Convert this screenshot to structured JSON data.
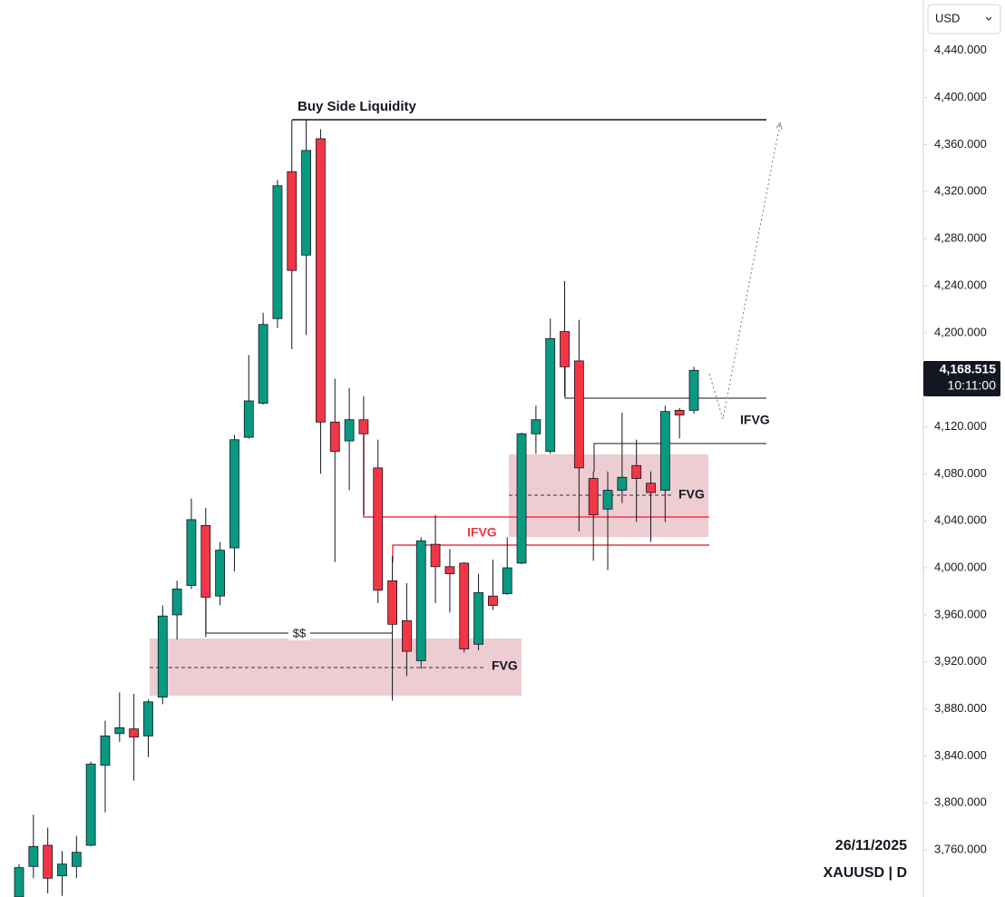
{
  "chart_data": {
    "type": "candlestick",
    "symbol": "XAUUSD | D",
    "date": "26/11/2025",
    "currency": "USD",
    "last_price": {
      "value": 4168.515,
      "label": "4,168.515"
    },
    "countdown": "10:11:00",
    "annotations": {
      "bsl": "Buy Side Liquidity",
      "ifvg_upper": "IFVG",
      "ifvg_lower": "IFVG",
      "fvg_upper": "FVG",
      "fvg_lower": "FVG",
      "ss": "$$"
    },
    "up_color": "#089981",
    "down_color": "#f23645",
    "ylim": [
      3720,
      4483
    ],
    "yticks": [
      {
        "value": 3760,
        "label": "3,760.000"
      },
      {
        "value": 3800,
        "label": "3,800.000"
      },
      {
        "value": 3840,
        "label": "3,840.000"
      },
      {
        "value": 3880,
        "label": "3,880.000"
      },
      {
        "value": 3920,
        "label": "3,920.000"
      },
      {
        "value": 3960,
        "label": "3,960.000"
      },
      {
        "value": 4000,
        "label": "4,000.000"
      },
      {
        "value": 4040,
        "label": "4,040.000"
      },
      {
        "value": 4080,
        "label": "4,080.000"
      },
      {
        "value": 4120,
        "label": "4,120.000"
      },
      {
        "value": 4160,
        "label": "4,160.000"
      },
      {
        "value": 4200,
        "label": "4,200.000"
      },
      {
        "value": 4240,
        "label": "4,240.000"
      },
      {
        "value": 4280,
        "label": "4,280.000"
      },
      {
        "value": 4320,
        "label": "4,320.000"
      },
      {
        "value": 4360,
        "label": "4,360.000"
      },
      {
        "value": 4400,
        "label": "4,400.000"
      },
      {
        "value": 4440,
        "label": "4,440.000"
      }
    ],
    "open": [
      3720,
      3746,
      3764,
      3738,
      3746,
      3764,
      3832,
      3859,
      3863,
      3857,
      3890,
      3960,
      3985,
      4036,
      3976,
      4017,
      4111,
      4140,
      4212,
      4337,
      4266,
      4365,
      4124,
      4108,
      4126,
      4085,
      3989,
      3955,
      3921,
      4020,
      4001,
      4004,
      3935,
      3976,
      3978,
      4004,
      4114,
      4099,
      4201,
      4176,
      4076,
      4050,
      4066,
      4087,
      4072,
      4066,
      4134,
      4134
    ],
    "high": [
      3748,
      3790,
      3779,
      3759,
      3772,
      3835,
      3870,
      3894,
      3893,
      3888,
      3968,
      3989,
      4059,
      4051,
      4022,
      4113,
      4181,
      4217,
      4330,
      4381,
      4381,
      4373,
      4161,
      4153,
      4146,
      4109,
      4010,
      3987,
      4026,
      4045,
      4016,
      4005,
      3995,
      4007,
      4026,
      4115,
      4138,
      4212,
      4244,
      4211,
      4082,
      4082,
      4132,
      4109,
      4082,
      4138,
      4136,
      4171
    ],
    "low": [
      3720,
      3736,
      3723,
      3721,
      3736,
      3763,
      3792,
      3852,
      3819,
      3839,
      3884,
      3939,
      3982,
      3941,
      3968,
      3997,
      4110,
      4139,
      4204,
      4186,
      4198,
      4080,
      4005,
      4066,
      4045,
      3970,
      3887,
      3908,
      3914,
      3970,
      3962,
      3928,
      3930,
      3964,
      3977,
      4003,
      4097,
      4097,
      4146,
      4031,
      4006,
      3998,
      4055,
      4039,
      4022,
      4039,
      4110,
      4131
    ],
    "close": [
      3745,
      3763,
      3736,
      3748,
      3758,
      3833,
      3857,
      3864,
      3856,
      3886,
      3959,
      3982,
      4041,
      3975,
      4015,
      4109,
      4142,
      4207,
      4325,
      4253,
      4355,
      4124,
      4099,
      4126,
      4114,
      3981,
      3952,
      3929,
      4023,
      4001,
      3995,
      3931,
      3979,
      3968,
      4000,
      4114,
      4126,
      4195,
      4171,
      4085,
      4045,
      4066,
      4077,
      4076,
      4064,
      4133,
      4130,
      4168
    ]
  }
}
